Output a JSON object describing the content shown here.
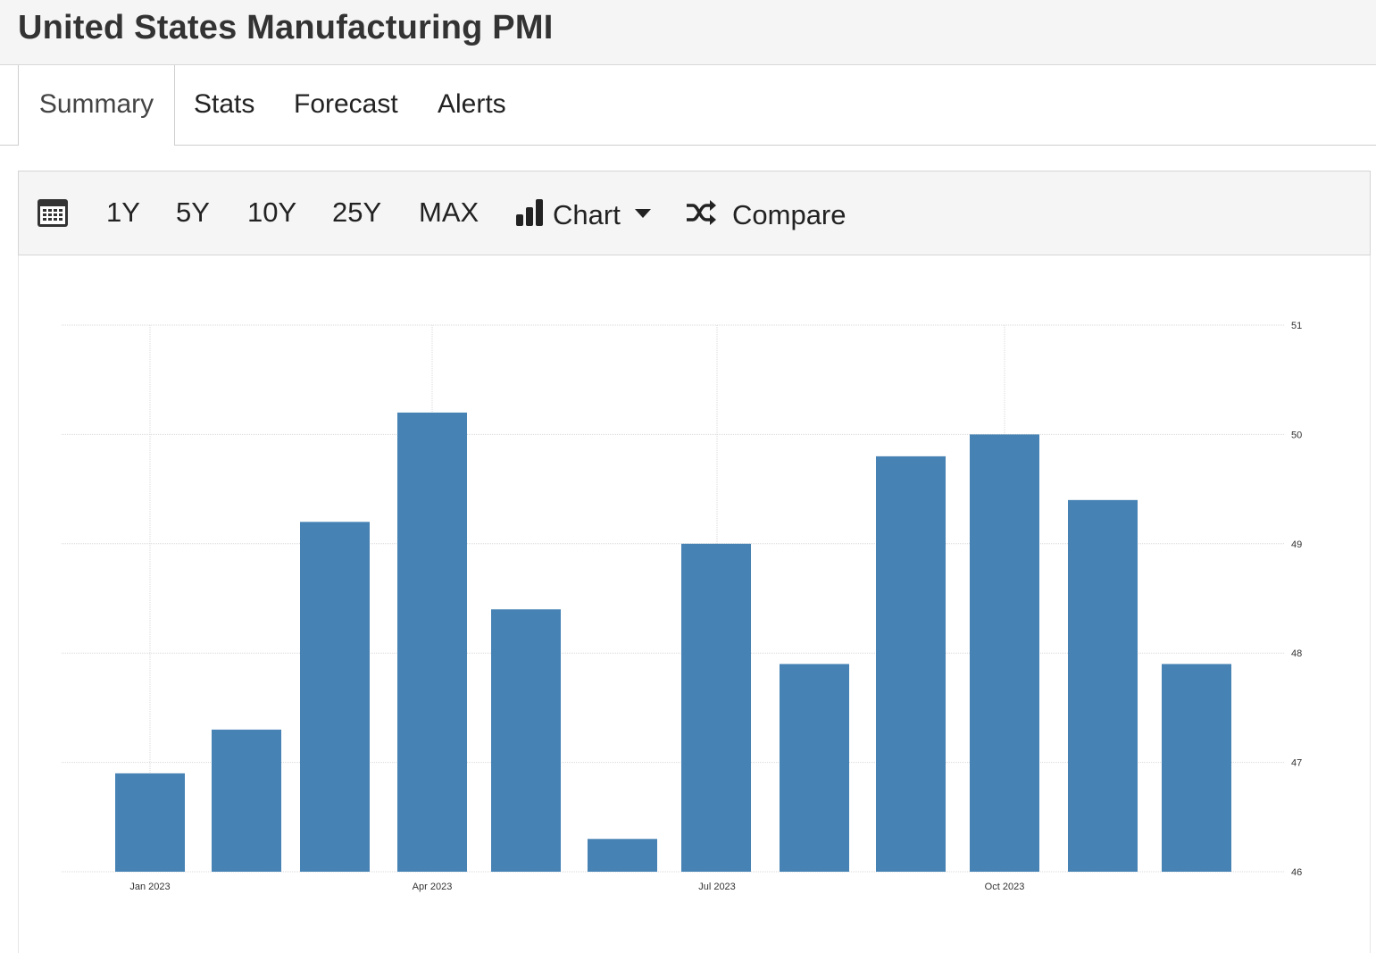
{
  "header": {
    "title": "United States Manufacturing PMI"
  },
  "tabs": [
    {
      "label": "Summary",
      "active": true
    },
    {
      "label": "Stats",
      "active": false
    },
    {
      "label": "Forecast",
      "active": false
    },
    {
      "label": "Alerts",
      "active": false
    }
  ],
  "toolbar": {
    "calendar_icon": "calendar-icon",
    "ranges": [
      "1Y",
      "5Y",
      "10Y",
      "25Y",
      "MAX"
    ],
    "chart_label": "Chart",
    "compare_label": "Compare"
  },
  "colors": {
    "bar": "#4682b4",
    "grid": "#d9d9d9"
  },
  "chart_data": {
    "type": "bar",
    "title": "",
    "xlabel": "",
    "ylabel": "",
    "x": [
      "2023-01",
      "2023-02",
      "2023-03",
      "2023-04",
      "2023-05",
      "2023-06",
      "2023-07",
      "2023-08",
      "2023-09",
      "2023-10",
      "2023-11",
      "2023-12"
    ],
    "values": [
      46.9,
      47.3,
      49.2,
      50.2,
      48.4,
      46.3,
      49.0,
      47.9,
      49.8,
      50.0,
      49.4,
      47.9
    ],
    "x_ticks": [
      "Jan 2023",
      "Apr 2023",
      "Jul 2023",
      "Oct 2023"
    ],
    "y_ticks": [
      46,
      47,
      48,
      49,
      50,
      51
    ],
    "ylim": [
      46,
      51
    ],
    "y_axis_side": "right",
    "grid": true,
    "legend": "none"
  }
}
